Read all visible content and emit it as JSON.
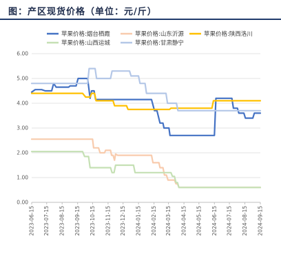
{
  "title": "图：产区现货价格（单位：元/斤）",
  "chart_data": {
    "type": "line",
    "title": "图：产区现货价格（单位：元/斤）",
    "xlabel": "",
    "ylabel": "",
    "ylim": [
      0,
      6
    ],
    "ytick_labels": [
      "0.00",
      "1.00",
      "2.00",
      "3.00",
      "4.00",
      "5.00",
      "6.00"
    ],
    "xtick_labels": [
      "2023-06-15",
      "2023-07-15",
      "2023-08-15",
      "2023-09-15",
      "2023-10-15",
      "2023-11-15",
      "2023-12-15",
      "2024-01-15",
      "2024-02-15",
      "2024-03-15",
      "2024-04-15",
      "2024-05-15",
      "2024-06-15",
      "2024-07-15",
      "2024-08-15",
      "2024-09-15"
    ],
    "x_start": "2023-06-15",
    "x_end": "2024-09-15",
    "grid": "horizontal",
    "legend_position": "top",
    "series": [
      {
        "name": "苹果价格:烟台栖霞",
        "color": "#4472c4",
        "points": [
          [
            "2023-06-15",
            4.45
          ],
          [
            "2023-06-22",
            4.55
          ],
          [
            "2023-07-05",
            4.55
          ],
          [
            "2023-07-12",
            4.5
          ],
          [
            "2023-07-25",
            4.5
          ],
          [
            "2023-07-29",
            4.8
          ],
          [
            "2023-08-03",
            4.65
          ],
          [
            "2023-08-28",
            4.65
          ],
          [
            "2023-08-31",
            4.7
          ],
          [
            "2023-09-12",
            4.7
          ],
          [
            "2023-09-16",
            5.0
          ],
          [
            "2023-10-05",
            5.0
          ],
          [
            "2023-10-10",
            4.2
          ],
          [
            "2023-10-13",
            4.5
          ],
          [
            "2023-10-18",
            4.5
          ],
          [
            "2023-10-21",
            4.15
          ],
          [
            "2024-02-10",
            4.15
          ],
          [
            "2024-02-16",
            3.7
          ],
          [
            "2024-02-21",
            3.7
          ],
          [
            "2024-02-27",
            3.2
          ],
          [
            "2024-03-04",
            3.2
          ],
          [
            "2024-03-06",
            3.0
          ],
          [
            "2024-03-16",
            3.0
          ],
          [
            "2024-03-18",
            2.7
          ],
          [
            "2024-06-15",
            2.7
          ],
          [
            "2024-06-18",
            4.2
          ],
          [
            "2024-07-20",
            4.2
          ],
          [
            "2024-07-23",
            3.8
          ],
          [
            "2024-07-31",
            3.8
          ],
          [
            "2024-08-03",
            3.6
          ],
          [
            "2024-08-13",
            3.6
          ],
          [
            "2024-08-16",
            3.4
          ],
          [
            "2024-08-31",
            3.4
          ],
          [
            "2024-09-03",
            3.6
          ],
          [
            "2024-09-15",
            3.6
          ]
        ]
      },
      {
        "name": "苹果价格:山东沂源",
        "color": "#f8cbad",
        "points": [
          [
            "2023-06-15",
            2.55
          ],
          [
            "2023-09-20",
            2.55
          ],
          [
            "2023-10-15",
            2.55
          ],
          [
            "2023-10-17",
            2.2
          ],
          [
            "2023-10-27",
            2.2
          ],
          [
            "2023-10-30",
            2.0
          ],
          [
            "2023-11-08",
            2.0
          ],
          [
            "2023-11-10",
            2.1
          ],
          [
            "2023-11-20",
            2.1
          ],
          [
            "2023-11-22",
            1.9
          ],
          [
            "2023-11-25",
            1.9
          ],
          [
            "2023-11-28",
            1.7
          ],
          [
            "2023-11-30",
            1.95
          ],
          [
            "2023-12-04",
            1.9
          ],
          [
            "2024-02-10",
            1.9
          ],
          [
            "2024-02-13",
            1.6
          ],
          [
            "2024-02-25",
            1.6
          ],
          [
            "2024-02-27",
            1.4
          ],
          [
            "2024-03-04",
            1.4
          ],
          [
            "2024-03-07",
            1.1
          ],
          [
            "2024-03-11",
            1.1
          ],
          [
            "2024-03-14",
            0.9
          ],
          [
            "2024-03-27",
            0.9
          ],
          [
            "2024-03-30",
            0.75
          ],
          [
            "2024-04-02",
            0.75
          ],
          [
            "2024-04-05",
            0.6
          ],
          [
            "2024-09-15",
            0.6
          ]
        ]
      },
      {
        "name": "苹果价格:陕西洛川",
        "color": "#ffc000",
        "points": [
          [
            "2023-06-15",
            4.4
          ],
          [
            "2023-09-25",
            4.4
          ],
          [
            "2023-10-01",
            4.25
          ],
          [
            "2023-10-10",
            4.25
          ],
          [
            "2023-10-13",
            4.4
          ],
          [
            "2023-10-19",
            4.4
          ],
          [
            "2023-10-22",
            4.1
          ],
          [
            "2023-11-25",
            4.1
          ],
          [
            "2023-11-28",
            3.9
          ],
          [
            "2023-12-22",
            3.9
          ],
          [
            "2023-12-25",
            3.75
          ],
          [
            "2024-03-17",
            3.75
          ],
          [
            "2024-03-20",
            3.8
          ],
          [
            "2024-06-10",
            3.8
          ],
          [
            "2024-06-13",
            4.1
          ],
          [
            "2024-09-15",
            4.1
          ]
        ]
      },
      {
        "name": "苹果价格:山西运城",
        "color": "#c5e0b4",
        "points": [
          [
            "2023-06-15",
            2.05
          ],
          [
            "2023-09-25",
            2.05
          ],
          [
            "2023-09-29",
            1.85
          ],
          [
            "2023-10-07",
            1.85
          ],
          [
            "2023-10-10",
            1.4
          ],
          [
            "2023-11-20",
            1.4
          ],
          [
            "2023-11-23",
            1.2
          ],
          [
            "2023-11-27",
            1.2
          ],
          [
            "2023-11-30",
            1.5
          ],
          [
            "2024-01-05",
            1.5
          ],
          [
            "2024-01-08",
            1.2
          ],
          [
            "2024-03-20",
            1.2
          ],
          [
            "2024-03-23",
            1.05
          ],
          [
            "2024-03-27",
            1.05
          ],
          [
            "2024-03-30",
            0.8
          ],
          [
            "2024-04-02",
            0.8
          ],
          [
            "2024-04-05",
            0.6
          ],
          [
            "2024-09-15",
            0.6
          ]
        ]
      },
      {
        "name": "苹果价格:甘肃静宁",
        "color": "#b4c7e7",
        "points": [
          [
            "2023-06-15",
            4.8
          ],
          [
            "2023-10-05",
            4.8
          ],
          [
            "2023-10-08",
            5.4
          ],
          [
            "2023-10-20",
            5.4
          ],
          [
            "2023-10-23",
            5.0
          ],
          [
            "2023-11-20",
            5.0
          ],
          [
            "2023-11-23",
            5.3
          ],
          [
            "2023-12-28",
            5.3
          ],
          [
            "2023-12-31",
            5.1
          ],
          [
            "2024-01-15",
            5.1
          ],
          [
            "2024-01-18",
            4.8
          ],
          [
            "2024-01-28",
            4.8
          ],
          [
            "2024-01-31",
            4.4
          ],
          [
            "2024-03-10",
            4.4
          ],
          [
            "2024-03-13",
            4.0
          ],
          [
            "2024-03-31",
            4.0
          ],
          [
            "2024-04-03",
            3.7
          ],
          [
            "2024-08-10",
            3.7
          ],
          [
            "2024-08-13",
            3.7
          ],
          [
            "2024-09-15",
            3.7
          ]
        ]
      }
    ]
  }
}
